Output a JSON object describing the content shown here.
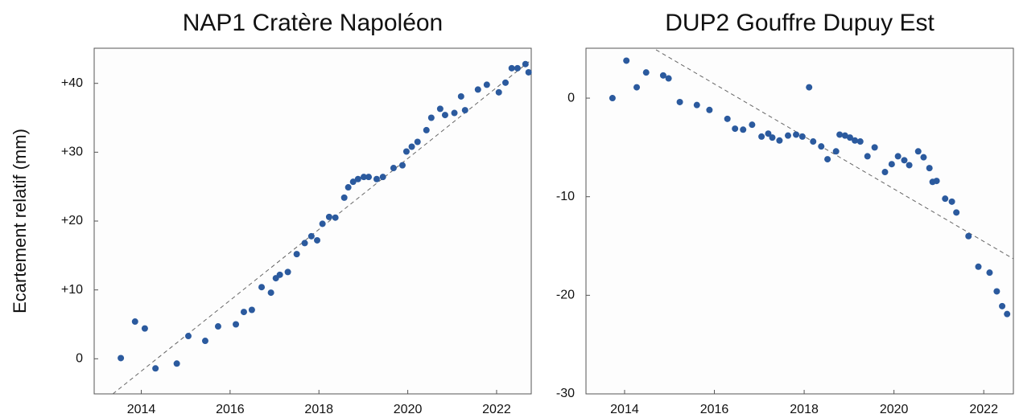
{
  "chart_data": [
    {
      "type": "scatter",
      "title": "NAP1 Cratère Napoléon",
      "ylabel": "Ecartement relatif (mm)",
      "color": "#2b5a9e",
      "x": [
        2013.54,
        2013.86,
        2014.08,
        2014.32,
        2014.8,
        2015.06,
        2015.44,
        2015.73,
        2016.13,
        2016.31,
        2016.49,
        2016.71,
        2016.92,
        2017.03,
        2017.12,
        2017.3,
        2017.5,
        2017.68,
        2017.83,
        2017.96,
        2018.08,
        2018.23,
        2018.37,
        2018.57,
        2018.66,
        2018.77,
        2018.88,
        2019.01,
        2019.12,
        2019.3,
        2019.44,
        2019.68,
        2019.88,
        2019.97,
        2020.09,
        2020.22,
        2020.42,
        2020.53,
        2020.73,
        2020.84,
        2021.05,
        2021.2,
        2021.29,
        2021.58,
        2021.78,
        2022.05,
        2022.2,
        2022.34,
        2022.47,
        2022.65,
        2022.72
      ],
      "values": [
        0.1,
        5.4,
        4.4,
        -1.4,
        -0.7,
        3.3,
        2.6,
        4.7,
        5.0,
        6.8,
        7.1,
        10.4,
        9.6,
        11.7,
        12.2,
        12.6,
        15.2,
        16.8,
        17.8,
        17.2,
        19.6,
        20.6,
        20.5,
        23.4,
        24.9,
        25.7,
        26.1,
        26.4,
        26.4,
        26.1,
        26.4,
        27.7,
        28.1,
        30.1,
        30.8,
        31.5,
        33.2,
        35.0,
        36.3,
        35.4,
        35.7,
        38.1,
        36.1,
        39.1,
        39.8,
        38.7,
        40.1,
        42.2,
        42.2,
        42.8,
        41.6
      ],
      "trend": {
        "x": [
          2013.36,
          2022.78
        ],
        "y": [
          -5.1,
          43.4
        ]
      },
      "xlim": [
        2012.94,
        2022.78
      ],
      "xticks": [
        2014,
        2016,
        2018,
        2020,
        2022
      ],
      "ylim": [
        -5.1,
        45.1
      ],
      "yticks": [
        0,
        {
          "value": 10,
          "label": "+10"
        },
        {
          "value": 20,
          "label": "+20"
        },
        {
          "value": 30,
          "label": "+30"
        },
        {
          "value": 40,
          "label": "+40"
        }
      ]
    },
    {
      "type": "scatter",
      "title": "DUP2 Gouffre Dupuy Est",
      "color": "#2b5a9e",
      "x": [
        2013.73,
        2014.04,
        2014.27,
        2014.48,
        2014.86,
        2014.98,
        2015.23,
        2015.61,
        2015.89,
        2016.29,
        2016.46,
        2016.64,
        2016.84,
        2017.05,
        2017.2,
        2017.29,
        2017.45,
        2017.64,
        2017.82,
        2017.96,
        2018.11,
        2018.2,
        2018.38,
        2018.52,
        2018.71,
        2018.79,
        2018.91,
        2019.02,
        2019.13,
        2019.25,
        2019.41,
        2019.57,
        2019.8,
        2019.95,
        2020.09,
        2020.23,
        2020.34,
        2020.54,
        2020.66,
        2020.79,
        2020.86,
        2020.95,
        2021.14,
        2021.29,
        2021.39,
        2021.66,
        2021.88,
        2022.13,
        2022.29,
        2022.41,
        2022.52
      ],
      "values": [
        0.0,
        3.8,
        1.1,
        2.6,
        2.3,
        2.0,
        -0.4,
        -0.7,
        -1.2,
        -2.1,
        -3.1,
        -3.2,
        -2.7,
        -3.9,
        -3.6,
        -4.0,
        -4.3,
        -3.8,
        -3.7,
        -3.9,
        1.1,
        -4.4,
        -4.9,
        -6.2,
        -5.4,
        -3.7,
        -3.8,
        -4.0,
        -4.3,
        -4.4,
        -5.9,
        -5.0,
        -7.5,
        -6.7,
        -5.9,
        -6.3,
        -6.8,
        -5.4,
        -6.0,
        -7.1,
        -8.5,
        -8.4,
        -10.2,
        -10.5,
        -11.6,
        -14.0,
        -17.1,
        -17.7,
        -19.6,
        -21.1,
        -21.9
      ],
      "trend": {
        "x": [
          2014.7,
          2022.66
        ],
        "y": [
          4.9,
          -16.3
        ]
      },
      "xlim": [
        2013.14,
        2022.66
      ],
      "xticks": [
        2014,
        2016,
        2018,
        2020,
        2022
      ],
      "ylim": [
        -30,
        5.06
      ],
      "yticks": [
        -30,
        -20,
        -10,
        0
      ]
    }
  ]
}
